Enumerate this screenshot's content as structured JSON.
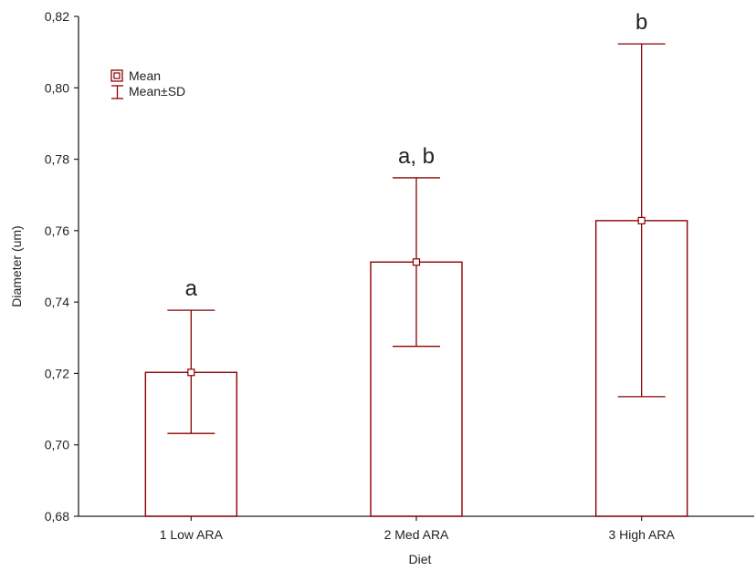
{
  "chart_data": {
    "type": "bar",
    "xlabel": "Diet",
    "ylabel": "Diameter (um)",
    "ylim": [
      0.68,
      0.82
    ],
    "y_ticks": [
      "0,68",
      "0,70",
      "0,72",
      "0,74",
      "0,76",
      "0,78",
      "0,80",
      "0,82"
    ],
    "y_tick_values": [
      0.68,
      0.7,
      0.72,
      0.74,
      0.76,
      0.78,
      0.8,
      0.82
    ],
    "categories": [
      "1 Low ARA",
      "2 Med ARA",
      "3 High ARA"
    ],
    "series": [
      {
        "name": "Mean",
        "values": [
          0.7203,
          0.7512,
          0.7628
        ],
        "sd_lower": [
          0.7032,
          0.7276,
          0.7135
        ],
        "sd_upper": [
          0.7377,
          0.7748,
          0.8123
        ]
      }
    ],
    "significance_labels": [
      "a",
      "a, b",
      "b"
    ],
    "legend": {
      "position": "top-left",
      "entries": [
        "Mean",
        "Mean±SD"
      ]
    },
    "grid": false,
    "colors": {
      "series": "#8b0000",
      "axis": "#222222"
    }
  }
}
